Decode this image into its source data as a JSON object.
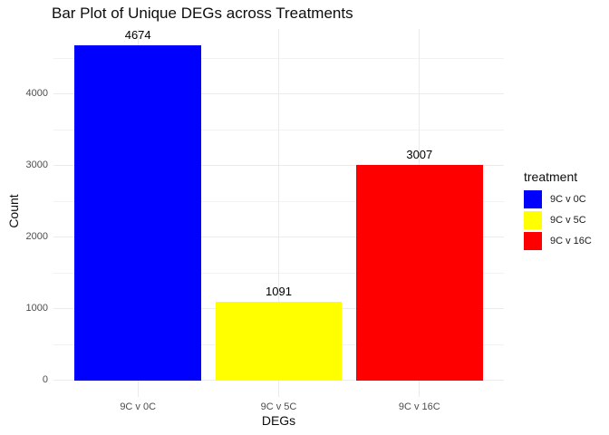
{
  "chart_data": {
    "type": "bar",
    "title": "Bar Plot of Unique DEGs across Treatments",
    "xlabel": "DEGs",
    "ylabel": "Count",
    "categories": [
      "9C v 0C",
      "9C v 5C",
      "9C v 16C"
    ],
    "values": [
      4674,
      1091,
      3007
    ],
    "colors": [
      "#0000ff",
      "#ffff00",
      "#ff0000"
    ],
    "bar_value_labels": [
      "4674",
      "1091",
      "3007"
    ],
    "yticks": [
      0,
      1000,
      2000,
      3000,
      4000
    ],
    "ylim": [
      0,
      4908
    ],
    "grid": true,
    "legend_position": "right"
  },
  "legend": {
    "title": "treatment",
    "items": [
      {
        "label": "9C v 0C",
        "color": "#0000ff"
      },
      {
        "label": "9C v 5C",
        "color": "#ffff00"
      },
      {
        "label": "9C v 16C",
        "color": "#ff0000"
      }
    ]
  },
  "style": {
    "background": "#ffffff",
    "grid_major_color": "#ebebeb",
    "grid_minor_color": "#f2f2f2",
    "axis_text_color": "#4d4d4d",
    "title_text_color": "#0d0d0d"
  }
}
